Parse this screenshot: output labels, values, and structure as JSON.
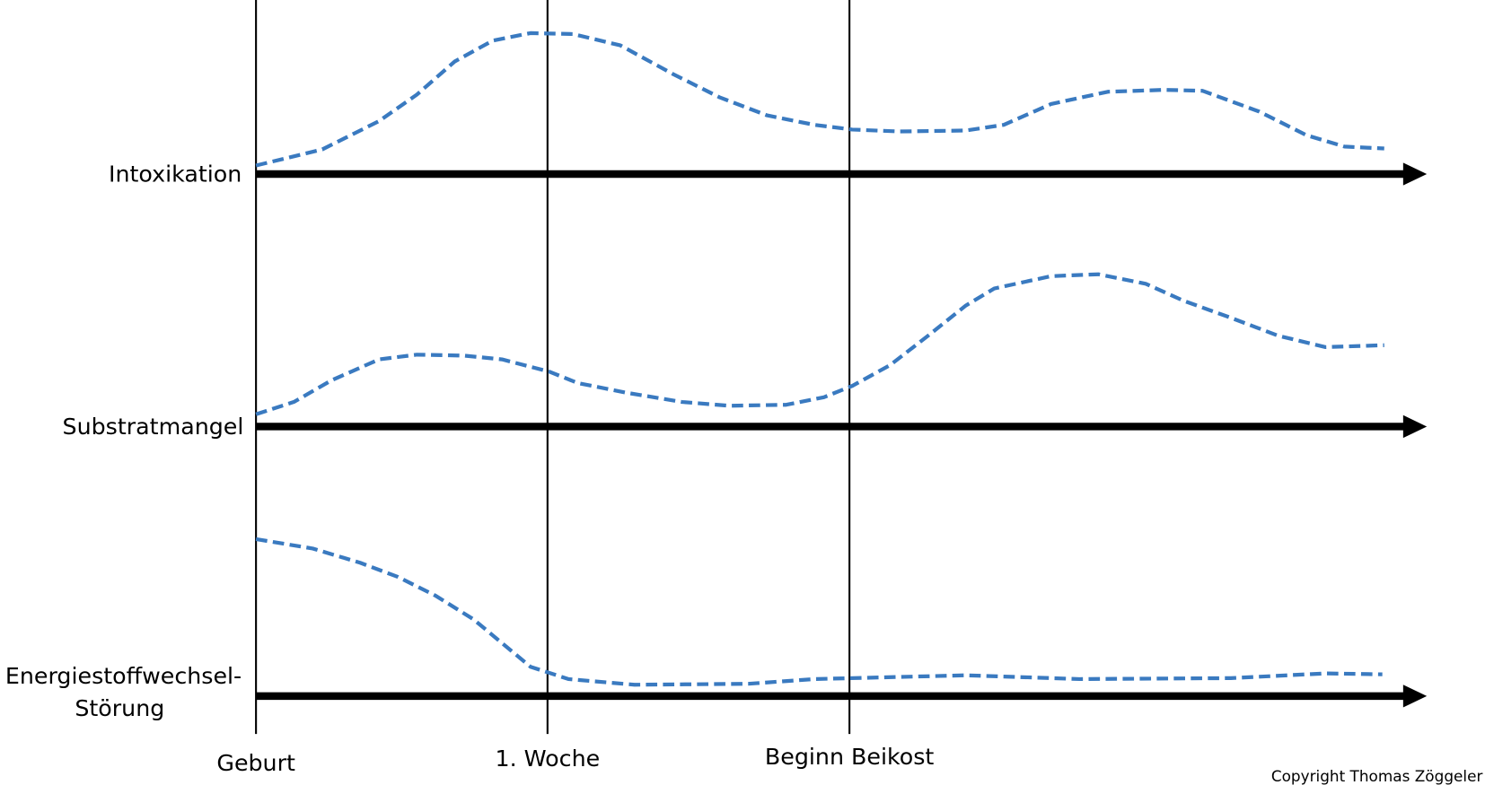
{
  "rows": [
    "Intoxikation",
    "Substratmangel",
    [
      "Energiestoffwechsel-",
      "Störung"
    ]
  ],
  "milestones": [
    "Geburt",
    "1. Woche",
    "Beginn Beikost"
  ],
  "copyright": "Copyright Thomas Zöggeler"
}
